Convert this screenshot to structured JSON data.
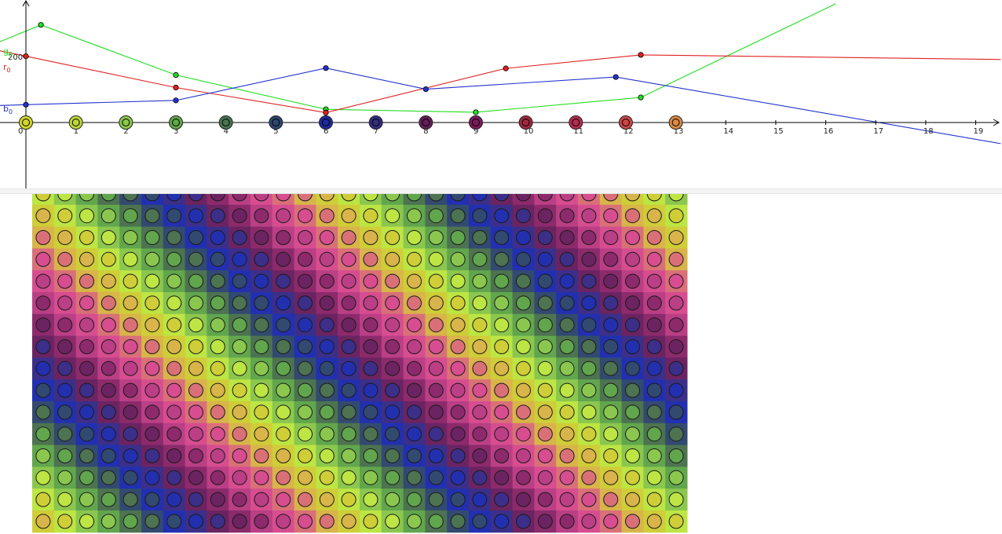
{
  "graph": {
    "x_axis": {
      "min": -0.5,
      "max": 19.5,
      "tick_labels": [
        "0",
        "1",
        "2",
        "3",
        "4",
        "5",
        "6",
        "7",
        "8",
        "9",
        "10",
        "11",
        "12",
        "13",
        "14",
        "15",
        "16",
        "17",
        "18",
        "19"
      ]
    },
    "y_axis": {
      "labeled_tick": "200",
      "labeled_tick_value": 200
    },
    "series": [
      {
        "id": "g",
        "name": "g",
        "subscript": "0",
        "color": "#22dd22",
        "points": [
          [
            0.3,
            296
          ],
          [
            3.0,
            144
          ],
          [
            6.0,
            40
          ],
          [
            9.0,
            31
          ],
          [
            12.3,
            76
          ]
        ],
        "line_end": [
          16.2,
          360
        ]
      },
      {
        "id": "r",
        "name": "r",
        "subscript": "0",
        "color": "#e02222",
        "points": [
          [
            0.0,
            201
          ],
          [
            3.0,
            106
          ],
          [
            6.0,
            30
          ],
          [
            9.6,
            164
          ],
          [
            12.3,
            205
          ]
        ],
        "line_end": [
          19.5,
          191
        ]
      },
      {
        "id": "b",
        "name": "b",
        "subscript": "0",
        "color": "#2233cc",
        "points": [
          [
            0.0,
            54
          ],
          [
            3.0,
            67
          ],
          [
            6.0,
            165
          ],
          [
            8.0,
            101
          ],
          [
            11.8,
            138
          ]
        ],
        "line_end": [
          19.5,
          -64
        ]
      }
    ],
    "axis_dots": [
      {
        "x": 0,
        "fill": "#d2d62a"
      },
      {
        "x": 1,
        "fill": "#bdd63a"
      },
      {
        "x": 2,
        "fill": "#8cc84c"
      },
      {
        "x": 3,
        "fill": "#62a84a"
      },
      {
        "x": 4,
        "fill": "#4a7450"
      },
      {
        "x": 5,
        "fill": "#2e4670"
      },
      {
        "x": 6,
        "fill": "#1c2a9c"
      },
      {
        "x": 7,
        "fill": "#32307e"
      },
      {
        "x": 8,
        "fill": "#641e58"
      },
      {
        "x": 9,
        "fill": "#7c1a5a"
      },
      {
        "x": 10,
        "fill": "#9e2a40"
      },
      {
        "x": 11,
        "fill": "#b42c52"
      },
      {
        "x": 12,
        "fill": "#cc4648"
      },
      {
        "x": 13,
        "fill": "#d88a44"
      }
    ]
  },
  "grid": {
    "cols": 30,
    "rows": 16,
    "palette": [
      "#cfcd38",
      "#bde543",
      "#8bc74e",
      "#61a64d",
      "#4d7351",
      "#324a70",
      "#2230b0",
      "#3b2f8a",
      "#6b2461",
      "#8c2a6c",
      "#ba3f85",
      "#d74d90",
      "#d97078",
      "#d8b44a"
    ]
  },
  "colors": {
    "axis": "#000000",
    "tick_text": "#222222",
    "view_background": "#ffffff",
    "divider": "#f4f4f4"
  }
}
